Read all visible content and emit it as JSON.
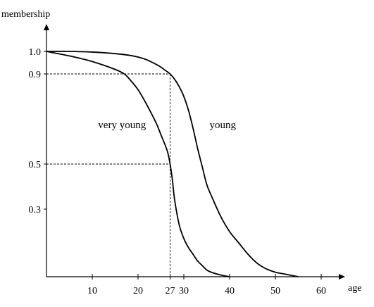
{
  "chart_data": {
    "type": "line",
    "xlabel": "age",
    "ylabel": "membership",
    "xlim": [
      0,
      65
    ],
    "ylim": [
      0,
      1.12
    ],
    "x_ticks": [
      "10",
      "20",
      "27",
      "30",
      "40",
      "50",
      "60"
    ],
    "x_tick_values": [
      10,
      20,
      27,
      30,
      40,
      50,
      60
    ],
    "y_ticks": [
      "0.3",
      "0.5",
      "0.9",
      "1.0"
    ],
    "y_tick_values": [
      0.3,
      0.5,
      0.9,
      1.0
    ],
    "reference_lines": {
      "x": 27,
      "y": [
        0.9,
        0.5
      ]
    },
    "series": [
      {
        "name": "young",
        "x": [
          0,
          5,
          10,
          15,
          18,
          20,
          22,
          24,
          25,
          26,
          27,
          28,
          29,
          30,
          31,
          32,
          33,
          34,
          35,
          36,
          38,
          40,
          42,
          44,
          46,
          48,
          50,
          52,
          55
        ],
        "values": [
          1.0,
          1.0,
          0.997,
          0.99,
          0.983,
          0.975,
          0.962,
          0.942,
          0.93,
          0.915,
          0.9,
          0.876,
          0.843,
          0.8,
          0.74,
          0.66,
          0.57,
          0.49,
          0.41,
          0.36,
          0.27,
          0.2,
          0.15,
          0.1,
          0.06,
          0.035,
          0.02,
          0.012,
          0.0
        ]
      },
      {
        "name": "very young",
        "x": [
          0,
          5,
          10,
          15,
          17,
          18,
          20,
          22,
          24,
          25,
          26,
          26.5,
          27,
          27.5,
          28,
          29,
          30,
          31,
          32,
          33,
          34,
          35,
          36,
          38,
          40
        ],
        "values": [
          1.0,
          0.98,
          0.955,
          0.92,
          0.9,
          0.88,
          0.83,
          0.76,
          0.68,
          0.63,
          0.58,
          0.55,
          0.5,
          0.43,
          0.34,
          0.23,
          0.17,
          0.13,
          0.1,
          0.07,
          0.05,
          0.03,
          0.02,
          0.008,
          0.0
        ]
      }
    ],
    "curve_labels": [
      {
        "text": "very young",
        "x": 16.5,
        "y": 0.66
      },
      {
        "text": "young",
        "x": 38.5,
        "y": 0.66
      }
    ]
  }
}
